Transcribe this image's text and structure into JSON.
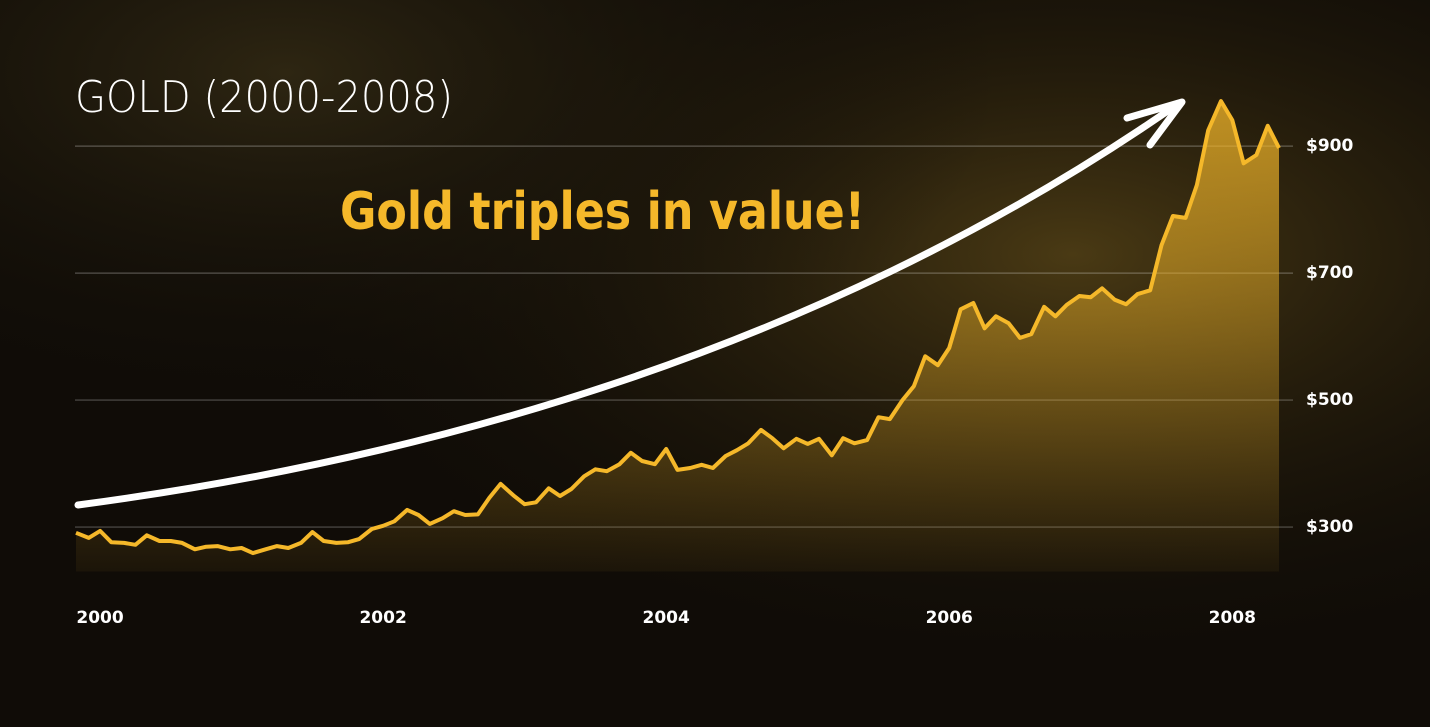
{
  "chart_data": {
    "type": "area",
    "title": "GOLD (2000-2008)",
    "annotation": "Gold triples in value!",
    "color": "#f5b82a",
    "x": [
      1999.83,
      1999.92,
      2000.0,
      2000.08,
      2000.17,
      2000.25,
      2000.33,
      2000.42,
      2000.5,
      2000.58,
      2000.67,
      2000.75,
      2000.83,
      2000.92,
      2001.0,
      2001.08,
      2001.17,
      2001.25,
      2001.33,
      2001.42,
      2001.5,
      2001.58,
      2001.67,
      2001.75,
      2001.83,
      2001.92,
      2002.0,
      2002.08,
      2002.17,
      2002.25,
      2002.33,
      2002.42,
      2002.5,
      2002.58,
      2002.67,
      2002.75,
      2002.83,
      2002.92,
      2003.0,
      2003.08,
      2003.17,
      2003.25,
      2003.33,
      2003.42,
      2003.5,
      2003.58,
      2003.67,
      2003.75,
      2003.83,
      2003.92,
      2004.0,
      2004.08,
      2004.17,
      2004.25,
      2004.33,
      2004.42,
      2004.5,
      2004.58,
      2004.67,
      2004.75,
      2004.83,
      2004.92,
      2005.0,
      2005.08,
      2005.17,
      2005.25,
      2005.33,
      2005.42,
      2005.5,
      2005.58,
      2005.67,
      2005.75,
      2005.83,
      2005.92,
      2006.0,
      2006.08,
      2006.17,
      2006.25,
      2006.33,
      2006.42,
      2006.5,
      2006.58,
      2006.67,
      2006.75,
      2006.83,
      2006.92,
      2007.0,
      2007.08,
      2007.17,
      2007.25,
      2007.33,
      2007.42,
      2007.5,
      2007.58,
      2007.67,
      2007.75,
      2007.83,
      2007.92,
      2008.0,
      2008.08,
      2008.17,
      2008.25,
      2008.33
    ],
    "values": [
      291,
      283,
      294,
      276,
      275,
      272,
      287,
      278,
      278,
      275,
      265,
      269,
      270,
      265,
      267,
      259,
      265,
      270,
      267,
      275,
      292,
      278,
      275,
      276,
      281,
      297,
      302,
      309,
      327,
      319,
      305,
      314,
      325,
      319,
      320,
      346,
      368,
      350,
      336,
      339,
      361,
      349,
      360,
      380,
      391,
      388,
      399,
      417,
      404,
      399,
      423,
      390,
      393,
      398,
      393,
      412,
      421,
      432,
      453,
      440,
      424,
      439,
      431,
      439,
      413,
      440,
      432,
      437,
      473,
      470,
      500,
      522,
      569,
      555,
      582,
      643,
      653,
      613,
      632,
      621,
      598,
      604,
      647,
      632,
      650,
      664,
      662,
      676,
      658,
      651,
      667,
      673,
      744,
      790,
      787,
      839,
      925,
      971,
      941,
      873,
      886,
      932,
      897
    ],
    "xlim": [
      1999.83,
      2008.33
    ],
    "xticks": [
      2000,
      2002,
      2004,
      2006,
      2008
    ],
    "ylim": [
      230,
      990
    ],
    "yticks": [
      {
        "value": 300,
        "label": "$300"
      },
      {
        "value": 500,
        "label": "$500"
      },
      {
        "value": 700,
        "label": "$700"
      },
      {
        "value": 900,
        "label": "$900"
      }
    ],
    "grid": true
  }
}
